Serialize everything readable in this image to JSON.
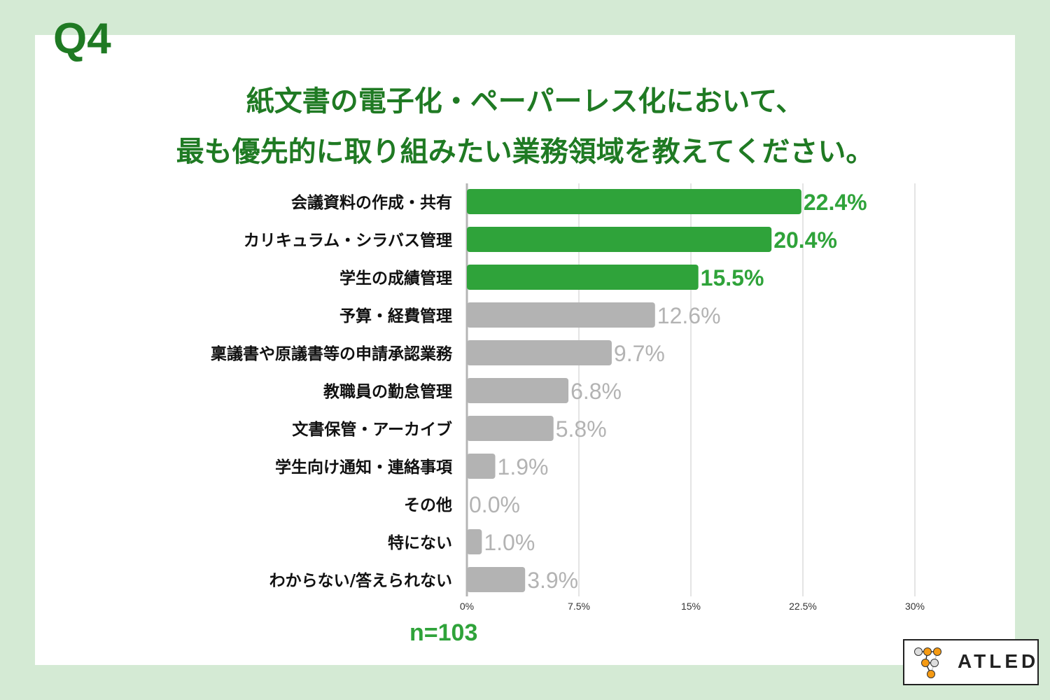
{
  "heading": "Q4",
  "title_lines": [
    "紙文書の電子化・ペーパーレス化において、",
    "最も優先的に取り組みたい業務領域を教えてください。"
  ],
  "sample_size": "n=103",
  "logo": "ATLED",
  "colors": {
    "highlight": "#2fa33a",
    "normal": "#b3b3b3",
    "title": "#1f7a23"
  },
  "chart_data": {
    "type": "bar",
    "orientation": "horizontal",
    "categories": [
      "会議資料の作成・共有",
      "カリキュラム・シラバス管理",
      "学生の成績管理",
      "予算・経費管理",
      "稟議書や原議書等の申請承認業務",
      "教職員の勤怠管理",
      "文書保管・アーカイブ",
      "学生向け通知・連絡事項",
      "その他",
      "特にない",
      "わからない/答えられない"
    ],
    "values": [
      22.4,
      20.4,
      15.5,
      12.6,
      9.7,
      6.8,
      5.8,
      1.9,
      0.0,
      1.0,
      3.9
    ],
    "data_labels": [
      "22.4%",
      "20.4%",
      "15.5%",
      "12.6%",
      "9.7%",
      "6.8%",
      "5.8%",
      "1.9%",
      "0.0%",
      "1.0%",
      "3.9%"
    ],
    "highlighted": [
      true,
      true,
      true,
      false,
      false,
      false,
      false,
      false,
      false,
      false,
      false
    ],
    "xlim": [
      0,
      30
    ],
    "xticks": [
      0,
      7.5,
      15,
      22.5,
      30
    ],
    "xtick_labels": [
      "0%",
      "7.5%",
      "15%",
      "22.5%",
      "30%"
    ],
    "grid": true
  }
}
